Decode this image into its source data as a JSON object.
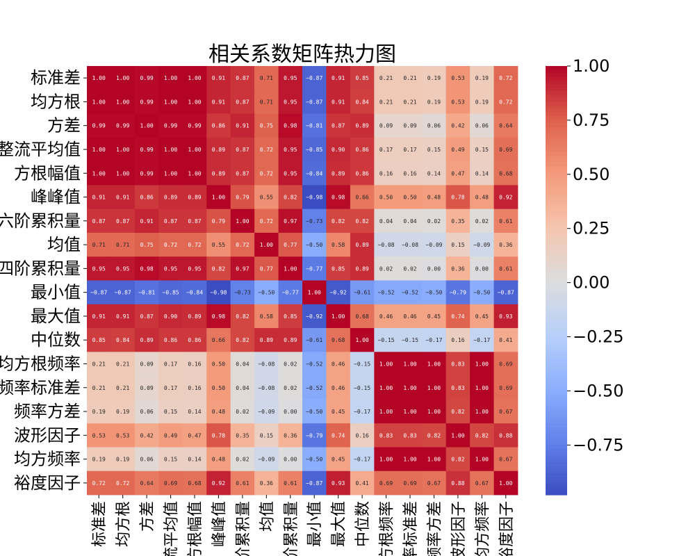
{
  "chart_data": {
    "type": "heatmap",
    "title": "相关系数矩阵热力图",
    "xlabel": "",
    "ylabel": "",
    "row_labels": [
      "标准差",
      "均方根",
      "方差",
      "整流平均值",
      "方根幅值",
      "峰峰值",
      "六阶累积量",
      "均值",
      "四阶累积量",
      "最小值",
      "最大值",
      "中位数",
      "均方根频率",
      "频率标准差",
      "频率方差",
      "波形因子",
      "均方频率",
      "裕度因子"
    ],
    "col_labels": [
      "标准差",
      "均方根",
      "方差",
      "整流平均值",
      "方根幅值",
      "峰峰值",
      "六阶累积量",
      "均值",
      "四阶累积量",
      "最小值",
      "最大值",
      "中位数",
      "均方根频率",
      "频率标准差",
      "频率方差",
      "波形因子",
      "均方频率",
      "裕度因子"
    ],
    "values": [
      [
        1.0,
        1.0,
        0.99,
        1.0,
        1.0,
        0.91,
        0.87,
        0.71,
        0.95,
        -0.87,
        0.91,
        0.85,
        0.21,
        0.21,
        0.19,
        0.53,
        0.19,
        0.72
      ],
      [
        1.0,
        1.0,
        0.99,
        1.0,
        1.0,
        0.91,
        0.87,
        0.71,
        0.95,
        -0.87,
        0.91,
        0.84,
        0.21,
        0.21,
        0.19,
        0.53,
        0.19,
        0.72
      ],
      [
        0.99,
        0.99,
        1.0,
        0.99,
        0.99,
        0.86,
        0.91,
        0.75,
        0.98,
        -0.81,
        0.87,
        0.89,
        0.09,
        0.09,
        0.06,
        0.42,
        0.06,
        0.64
      ],
      [
        1.0,
        1.0,
        0.99,
        1.0,
        1.0,
        0.89,
        0.87,
        0.72,
        0.95,
        -0.85,
        0.9,
        0.86,
        0.17,
        0.17,
        0.15,
        0.49,
        0.15,
        0.69
      ],
      [
        1.0,
        1.0,
        0.99,
        1.0,
        1.0,
        0.89,
        0.87,
        0.72,
        0.95,
        -0.84,
        0.89,
        0.86,
        0.16,
        0.16,
        0.14,
        0.47,
        0.14,
        0.68
      ],
      [
        0.91,
        0.91,
        0.86,
        0.89,
        0.89,
        1.0,
        0.79,
        0.55,
        0.82,
        -0.98,
        0.98,
        0.66,
        0.5,
        0.5,
        0.48,
        0.78,
        0.48,
        0.92
      ],
      [
        0.87,
        0.87,
        0.91,
        0.87,
        0.87,
        0.79,
        1.0,
        0.72,
        0.97,
        -0.73,
        0.82,
        0.82,
        0.04,
        0.04,
        0.02,
        0.35,
        0.02,
        0.61
      ],
      [
        0.71,
        0.71,
        0.75,
        0.72,
        0.72,
        0.55,
        0.72,
        1.0,
        0.77,
        -0.5,
        0.58,
        0.89,
        -0.08,
        -0.08,
        -0.09,
        0.15,
        -0.09,
        0.36
      ],
      [
        0.95,
        0.95,
        0.98,
        0.95,
        0.95,
        0.82,
        0.97,
        0.77,
        1.0,
        -0.77,
        0.85,
        0.89,
        0.02,
        0.02,
        0.0,
        0.36,
        0.0,
        0.61
      ],
      [
        -0.87,
        -0.87,
        -0.81,
        -0.85,
        -0.84,
        -0.98,
        -0.73,
        -0.5,
        -0.77,
        1.0,
        -0.92,
        -0.61,
        -0.52,
        -0.52,
        -0.5,
        -0.79,
        -0.5,
        -0.87
      ],
      [
        0.91,
        0.91,
        0.87,
        0.9,
        0.89,
        0.98,
        0.82,
        0.58,
        0.85,
        -0.92,
        1.0,
        0.68,
        0.46,
        0.46,
        0.45,
        0.74,
        0.45,
        0.93
      ],
      [
        0.85,
        0.84,
        0.89,
        0.86,
        0.86,
        0.66,
        0.82,
        0.89,
        0.89,
        -0.61,
        0.68,
        1.0,
        -0.15,
        -0.15,
        -0.17,
        0.16,
        -0.17,
        0.41
      ],
      [
        0.21,
        0.21,
        0.09,
        0.17,
        0.16,
        0.5,
        0.04,
        -0.08,
        0.02,
        -0.52,
        0.46,
        -0.15,
        1.0,
        1.0,
        1.0,
        0.83,
        1.0,
        0.69
      ],
      [
        0.21,
        0.21,
        0.09,
        0.17,
        0.16,
        0.5,
        0.04,
        -0.08,
        0.02,
        -0.52,
        0.46,
        -0.15,
        1.0,
        1.0,
        1.0,
        0.83,
        1.0,
        0.69
      ],
      [
        0.19,
        0.19,
        0.06,
        0.15,
        0.14,
        0.48,
        0.02,
        -0.09,
        0.0,
        -0.5,
        0.45,
        -0.17,
        1.0,
        1.0,
        1.0,
        0.82,
        1.0,
        0.67
      ],
      [
        0.53,
        0.53,
        0.42,
        0.49,
        0.47,
        0.78,
        0.35,
        0.15,
        0.36,
        -0.79,
        0.74,
        0.16,
        0.83,
        0.83,
        0.82,
        1.0,
        0.82,
        0.88
      ],
      [
        0.19,
        0.19,
        0.06,
        0.15,
        0.14,
        0.48,
        0.02,
        -0.09,
        0.0,
        -0.5,
        0.45,
        -0.17,
        1.0,
        1.0,
        1.0,
        0.82,
        1.0,
        0.67
      ],
      [
        0.72,
        0.72,
        0.64,
        0.69,
        0.68,
        0.92,
        0.61,
        0.36,
        0.61,
        -0.87,
        0.93,
        0.41,
        0.69,
        0.69,
        0.67,
        0.88,
        0.67,
        1.0
      ]
    ],
    "vmin": -0.98,
    "vmax": 1.0,
    "colormap": "coolwarm",
    "colorbar_ticks": [
      "1.00",
      "0.75",
      "0.50",
      "0.25",
      "0.00",
      "−0.25",
      "−0.50",
      "−0.75"
    ],
    "colorbar_tick_values": [
      1.0,
      0.75,
      0.5,
      0.25,
      0.0,
      -0.25,
      -0.5,
      -0.75
    ],
    "annotations": "2 decimals"
  }
}
